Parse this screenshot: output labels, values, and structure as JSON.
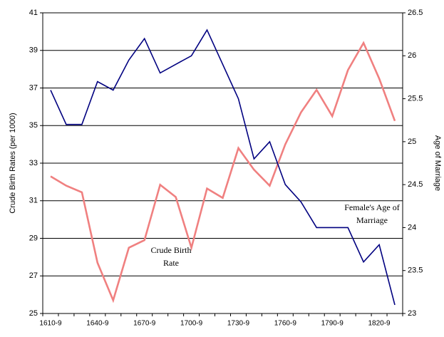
{
  "chart_data": {
    "type": "line",
    "ylabel": "Crude Birth Rates (per 1000)",
    "y2label": "Age of Marriage",
    "categories": [
      "1610-9",
      null,
      null,
      "1640-9",
      null,
      null,
      "1670-9",
      null,
      null,
      "1700-9",
      null,
      null,
      "1730-9",
      null,
      null,
      "1760-9",
      null,
      null,
      "1790-9",
      null,
      null,
      "1820-9",
      null
    ],
    "series": [
      {
        "name": "Crude Birth Rate",
        "color": "#f08080",
        "axis": "y",
        "values": [
          32.3,
          31.8,
          31.45,
          27.7,
          25.7,
          28.5,
          28.9,
          31.85,
          31.2,
          28.5,
          31.65,
          31.15,
          33.8,
          32.65,
          31.8,
          34,
          35.7,
          36.9,
          35.5,
          37.95,
          39.4,
          37.5,
          35.25
        ]
      },
      {
        "name": "Female's Age of Marriage",
        "color": "#000080",
        "axis": "y2",
        "values": [
          25.6,
          25.2,
          25.2,
          25.7,
          25.6,
          25.95,
          26.2,
          25.8,
          25.9,
          26,
          26.3,
          25.9,
          25.5,
          24.8,
          25,
          24.5,
          24.3,
          24,
          24,
          24,
          23.6,
          23.8,
          23.1
        ]
      }
    ],
    "annotations": [
      {
        "lines": [
          "Crude Birth",
          "Rate"
        ],
        "series": 0
      },
      {
        "lines": [
          "Female's Age of",
          "Marriage"
        ],
        "series": 1
      }
    ],
    "ylim": [
      25,
      41
    ],
    "yticks": [
      25,
      27,
      29,
      31,
      33,
      35,
      37,
      39,
      41
    ],
    "y2lim": [
      23,
      26.5
    ],
    "y2ticks": [
      23,
      23.5,
      24,
      24.5,
      25,
      25.5,
      26,
      26.5
    ],
    "grid": true
  }
}
